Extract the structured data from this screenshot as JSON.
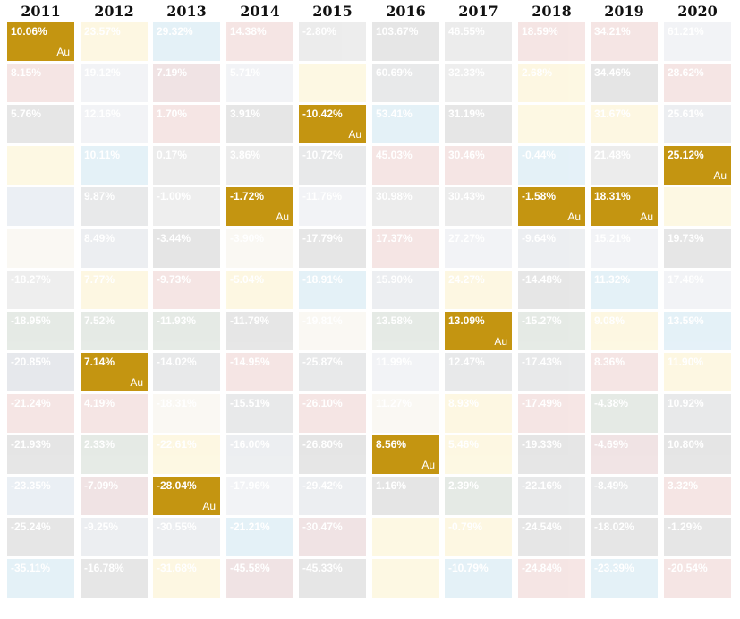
{
  "chart_data": {
    "type": "table",
    "highlight_color": "#c49511",
    "highlight_label": "Au",
    "highlight_series": "Au",
    "years": [
      "2011",
      "2012",
      "2013",
      "2014",
      "2015",
      "2016",
      "2017",
      "2018",
      "2019",
      "2020"
    ],
    "columns": [
      {
        "year": "2011",
        "cells": [
          {
            "value": "10.06%",
            "color": "#c49511",
            "tag": "Au",
            "hl": true
          },
          {
            "value": "8.15%",
            "color": "#b5322c"
          },
          {
            "value": "5.76%",
            "color": "#3a3a3a"
          },
          {
            "value": "",
            "color": "#f0c419"
          },
          {
            "value": "",
            "color": "#5a7fa8"
          },
          {
            "value": "",
            "color": "#d8c9a0"
          },
          {
            "value": "-18.27%",
            "color": "#7a7a7a"
          },
          {
            "value": "-18.95%",
            "color": "#2f5a35"
          },
          {
            "value": "-20.85%",
            "color": "#3d4a6b"
          },
          {
            "value": "-21.24%",
            "color": "#b5322c"
          },
          {
            "value": "-21.93%",
            "color": "#2f2f2f"
          },
          {
            "value": "-23.35%",
            "color": "#5a7fa8"
          },
          {
            "value": "-25.24%",
            "color": "#3a3a3a"
          },
          {
            "value": "-35.11%",
            "color": "#2b8fc2"
          }
        ]
      },
      {
        "year": "2012",
        "cells": [
          {
            "value": "23.57%",
            "color": "#f0c419"
          },
          {
            "value": "19.12%",
            "color": "#9aa6b8"
          },
          {
            "value": "12.16%",
            "color": "#9aa6b8"
          },
          {
            "value": "10.11%",
            "color": "#2b8fc2"
          },
          {
            "value": "9.87%",
            "color": "#4a4f5a"
          },
          {
            "value": "8.49%",
            "color": "#6a7a8f"
          },
          {
            "value": "7.77%",
            "color": "#f0c419"
          },
          {
            "value": "7.52%",
            "color": "#2f5a35"
          },
          {
            "value": "7.14%",
            "color": "#c49511",
            "tag": "Au",
            "hl": true
          },
          {
            "value": "4.19%",
            "color": "#b5322c"
          },
          {
            "value": "2.33%",
            "color": "#2f5a35"
          },
          {
            "value": "-7.09%",
            "color": "#8a1f2a"
          },
          {
            "value": "-9.25%",
            "color": "#6a7a8f"
          },
          {
            "value": "-16.78%",
            "color": "#3a3a3a"
          }
        ]
      },
      {
        "year": "2013",
        "cells": [
          {
            "value": "29.32%",
            "color": "#2b8fc2"
          },
          {
            "value": "7.19%",
            "color": "#8a1f2a"
          },
          {
            "value": "1.70%",
            "color": "#b5322c"
          },
          {
            "value": "0.17%",
            "color": "#6a6a6a"
          },
          {
            "value": "-1.00%",
            "color": "#7a7a7a"
          },
          {
            "value": "-3.44%",
            "color": "#2f2f2f"
          },
          {
            "value": "-9.73%",
            "color": "#b5322c"
          },
          {
            "value": "-11.93%",
            "color": "#2f5a35"
          },
          {
            "value": "-14.02%",
            "color": "#4a4f5a"
          },
          {
            "value": "-18.31%",
            "color": "#d8c9a0"
          },
          {
            "value": "-22.61%",
            "color": "#f0c419"
          },
          {
            "value": "-28.04%",
            "color": "#c49511",
            "tag": "Au",
            "hl": true
          },
          {
            "value": "-30.55%",
            "color": "#6a7a8f"
          },
          {
            "value": "-31.68%",
            "color": "#f0c419"
          }
        ]
      },
      {
        "year": "2014",
        "cells": [
          {
            "value": "14.38%",
            "color": "#b5322c"
          },
          {
            "value": "5.71%",
            "color": "#9aa6b8"
          },
          {
            "value": "3.91%",
            "color": "#3a3a3a"
          },
          {
            "value": "3.86%",
            "color": "#6a6a6a"
          },
          {
            "value": "-1.72%",
            "color": "#c49511",
            "tag": "Au",
            "hl": true
          },
          {
            "value": "-3.90%",
            "color": "#d8c9a0"
          },
          {
            "value": "-5.04%",
            "color": "#f0c419"
          },
          {
            "value": "-11.79%",
            "color": "#3a3a3a"
          },
          {
            "value": "-14.95%",
            "color": "#b5322c"
          },
          {
            "value": "-15.51%",
            "color": "#4a4f5a"
          },
          {
            "value": "-16.00%",
            "color": "#6a7a8f"
          },
          {
            "value": "-17.96%",
            "color": "#9aa6b8"
          },
          {
            "value": "-21.21%",
            "color": "#2b8fc2"
          },
          {
            "value": "-45.58%",
            "color": "#8a1f2a"
          }
        ]
      },
      {
        "year": "2015",
        "cells": [
          {
            "value": "-2.80%",
            "color": "#6a6a6a"
          },
          {
            "value": "",
            "color": "#f0c419"
          },
          {
            "value": "-10.42%",
            "color": "#c49511",
            "tag": "Au",
            "hl": true
          },
          {
            "value": "-10.72%",
            "color": "#4a4f5a"
          },
          {
            "value": "-11.76%",
            "color": "#9aa6b8"
          },
          {
            "value": "-17.79%",
            "color": "#3a3a3a"
          },
          {
            "value": "-18.91%",
            "color": "#2b8fc2"
          },
          {
            "value": "-19.81%",
            "color": "#d8c9a0"
          },
          {
            "value": "-25.87%",
            "color": "#4a4f5a"
          },
          {
            "value": "-26.10%",
            "color": "#b5322c"
          },
          {
            "value": "-26.80%",
            "color": "#2f2f2f"
          },
          {
            "value": "-29.42%",
            "color": "#6a7a8f"
          },
          {
            "value": "-30.47%",
            "color": "#8a1f2a"
          },
          {
            "value": "-45.33%",
            "color": "#3a3a3a"
          }
        ]
      },
      {
        "year": "2016",
        "cells": [
          {
            "value": "103.67%",
            "color": "#3a3a3a"
          },
          {
            "value": "60.69%",
            "color": "#4a4f5a"
          },
          {
            "value": "53.41%",
            "color": "#2b8fc2"
          },
          {
            "value": "45.03%",
            "color": "#b5322c"
          },
          {
            "value": "30.98%",
            "color": "#6a6a6a"
          },
          {
            "value": "17.37%",
            "color": "#b5322c"
          },
          {
            "value": "15.90%",
            "color": "#6a7a8f"
          },
          {
            "value": "13.58%",
            "color": "#2f5a35"
          },
          {
            "value": "11.99%",
            "color": "#9aa6b8"
          },
          {
            "value": "11.27%",
            "color": "#d8c9a0"
          },
          {
            "value": "8.56%",
            "color": "#c49511",
            "tag": "Au",
            "hl": true
          },
          {
            "value": "1.16%",
            "color": "#2f2f2f"
          },
          {
            "value": "",
            "color": "#f0c419"
          },
          {
            "value": "",
            "color": "#f0c419"
          }
        ]
      },
      {
        "year": "2017",
        "cells": [
          {
            "value": "46.55%",
            "color": "#6a6a6a"
          },
          {
            "value": "32.33%",
            "color": "#7a7a7a"
          },
          {
            "value": "31.19%",
            "color": "#3a3a3a"
          },
          {
            "value": "30.46%",
            "color": "#b5322c"
          },
          {
            "value": "30.43%",
            "color": "#6a6a6a"
          },
          {
            "value": "27.27%",
            "color": "#9aa6b8"
          },
          {
            "value": "24.27%",
            "color": "#f0c419"
          },
          {
            "value": "13.09%",
            "color": "#c49511",
            "tag": "Au",
            "hl": true
          },
          {
            "value": "12.47%",
            "color": "#4a4f5a"
          },
          {
            "value": "8.93%",
            "color": "#f0c419"
          },
          {
            "value": "5.46%",
            "color": "#f0c419"
          },
          {
            "value": "2.39%",
            "color": "#2f5a35"
          },
          {
            "value": "-0.79%",
            "color": "#f0c419"
          },
          {
            "value": "-10.79%",
            "color": "#2b8fc2"
          }
        ]
      },
      {
        "year": "2018",
        "cells": [
          {
            "value": "18.59%",
            "color": "#b5322c"
          },
          {
            "value": "2.68%",
            "color": "#f0c419"
          },
          {
            "value": "",
            "color": "#f0c419"
          },
          {
            "value": "-0.44%",
            "color": "#2b8fc2"
          },
          {
            "value": "-1.58%",
            "color": "#c49511",
            "tag": "Au",
            "hl": true
          },
          {
            "value": "-9.64%",
            "color": "#6a7a8f"
          },
          {
            "value": "-14.48%",
            "color": "#3a3a3a"
          },
          {
            "value": "-15.27%",
            "color": "#2f5a35"
          },
          {
            "value": "-17.43%",
            "color": "#4a4f5a"
          },
          {
            "value": "-17.49%",
            "color": "#b5322c"
          },
          {
            "value": "-19.33%",
            "color": "#2f2f2f"
          },
          {
            "value": "-22.16%",
            "color": "#4a4f5a"
          },
          {
            "value": "-24.54%",
            "color": "#3a3a3a"
          },
          {
            "value": "-24.84%",
            "color": "#b5322c"
          }
        ]
      },
      {
        "year": "2019",
        "cells": [
          {
            "value": "34.21%",
            "color": "#b5322c"
          },
          {
            "value": "34.46%",
            "color": "#2f2f2f"
          },
          {
            "value": "31.67%",
            "color": "#f0c419"
          },
          {
            "value": "21.48%",
            "color": "#6a6a6a"
          },
          {
            "value": "18.31%",
            "color": "#c49511",
            "tag": "Au",
            "hl": true
          },
          {
            "value": "15.21%",
            "color": "#9aa6b8"
          },
          {
            "value": "11.32%",
            "color": "#2b8fc2"
          },
          {
            "value": "9.08%",
            "color": "#f0c419"
          },
          {
            "value": "8.36%",
            "color": "#b5322c"
          },
          {
            "value": "-4.38%",
            "color": "#2f5a35"
          },
          {
            "value": "-4.69%",
            "color": "#8a1f2a"
          },
          {
            "value": "-8.49%",
            "color": "#4a4f5a"
          },
          {
            "value": "-18.02%",
            "color": "#3a3a3a"
          },
          {
            "value": "-23.39%",
            "color": "#2b8fc2"
          }
        ]
      },
      {
        "year": "2020",
        "cells": [
          {
            "value": "61.21%",
            "color": "#9aa6b8"
          },
          {
            "value": "28.62%",
            "color": "#b5322c"
          },
          {
            "value": "25.61%",
            "color": "#6a7a8f"
          },
          {
            "value": "25.12%",
            "color": "#c49511",
            "tag": "Au",
            "hl": true
          },
          {
            "value": "",
            "color": "#f0c419"
          },
          {
            "value": "19.73%",
            "color": "#3a3a3a"
          },
          {
            "value": "17.48%",
            "color": "#9aa6b8"
          },
          {
            "value": "13.59%",
            "color": "#2b8fc2"
          },
          {
            "value": "11.90%",
            "color": "#f0c419"
          },
          {
            "value": "10.92%",
            "color": "#4a4f5a"
          },
          {
            "value": "10.80%",
            "color": "#2f2f2f"
          },
          {
            "value": "3.32%",
            "color": "#b5322c"
          },
          {
            "value": "-1.29%",
            "color": "#3a3a3a"
          },
          {
            "value": "-20.54%",
            "color": "#b5322c"
          }
        ]
      }
    ]
  }
}
